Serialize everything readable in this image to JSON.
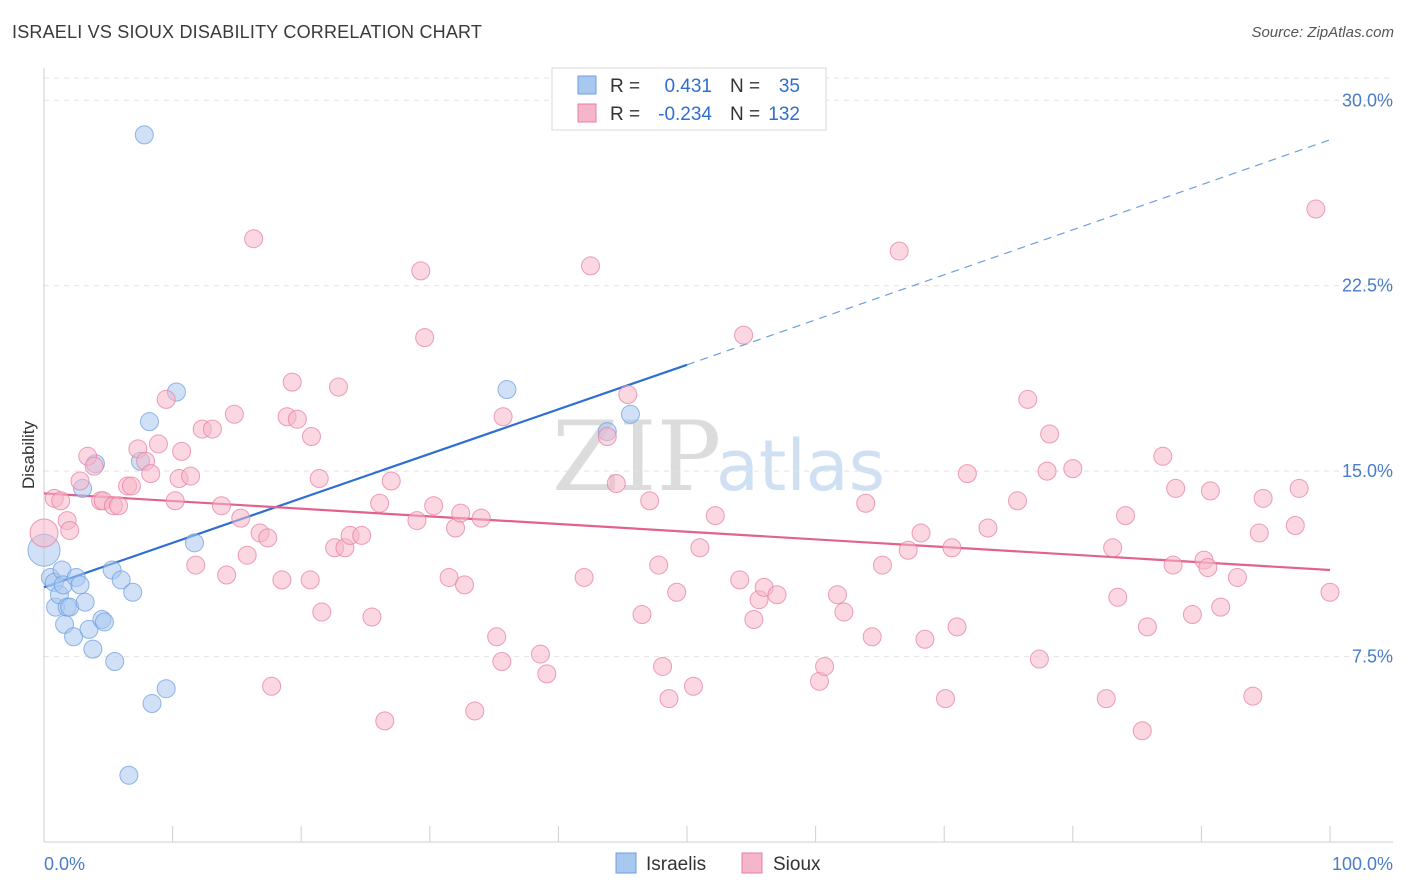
{
  "header": {
    "title": "ISRAELI VS SIOUX DISABILITY CORRELATION CHART",
    "source": "Source: ZipAtlas.com"
  },
  "watermark": {
    "zip": "ZIP",
    "atlas": "atlas"
  },
  "legend": {
    "rows": [
      {
        "r_label": "R =",
        "r_value": "0.431",
        "n_label": "N =",
        "n_value": "35",
        "color": "#a9c8f0"
      },
      {
        "r_label": "R =",
        "r_value": "-0.234",
        "n_label": "N =",
        "n_value": "132",
        "color": "#f5b6c9"
      }
    ]
  },
  "bottom_legend": {
    "israelis": "Israelis",
    "sioux": "Sioux"
  },
  "chart_data": {
    "type": "scatter",
    "title": "ISRAELI VS SIOUX DISABILITY CORRELATION CHART",
    "xlabel": "",
    "ylabel": "Disability",
    "xlim": [
      0,
      100
    ],
    "ylim": [
      0,
      30.9
    ],
    "x_tick_labels": [
      "0.0%",
      "100.0%"
    ],
    "y_ticks": [
      7.5,
      15.0,
      22.5,
      30.0
    ],
    "y_tick_labels": [
      "7.5%",
      "15.0%",
      "22.5%",
      "30.0%"
    ],
    "grid": true,
    "legend_position": "top-center",
    "series": [
      {
        "name": "Israelis",
        "color": "#6d9ee0",
        "fill": "#a9c8f0",
        "trend": {
          "x0": 0,
          "y0": 10.3,
          "x1": 50,
          "y1": 19.3,
          "dashed_to_x": 100,
          "dashed_to_y": 28.4
        },
        "points": [
          [
            0.0,
            11.8,
            16
          ],
          [
            0.5,
            10.7,
            9
          ],
          [
            0.8,
            10.5,
            9
          ],
          [
            0.9,
            9.5,
            9
          ],
          [
            1.2,
            10.0,
            9
          ],
          [
            1.4,
            11.0,
            9
          ],
          [
            1.5,
            10.4,
            9
          ],
          [
            1.6,
            8.8,
            9
          ],
          [
            1.8,
            9.5,
            9
          ],
          [
            2.0,
            9.5,
            9
          ],
          [
            2.3,
            8.3,
            9
          ],
          [
            2.5,
            10.7,
            9
          ],
          [
            2.8,
            10.4,
            9
          ],
          [
            3.0,
            14.3,
            9
          ],
          [
            3.2,
            9.7,
            9
          ],
          [
            3.5,
            8.6,
            9
          ],
          [
            3.8,
            7.8,
            9
          ],
          [
            4.0,
            15.3,
            9
          ],
          [
            4.5,
            9.0,
            9
          ],
          [
            4.7,
            8.9,
            9
          ],
          [
            5.3,
            11.0,
            9
          ],
          [
            5.5,
            7.3,
            9
          ],
          [
            6.0,
            10.6,
            9
          ],
          [
            6.9,
            10.1,
            9
          ],
          [
            7.8,
            28.6,
            9
          ],
          [
            7.5,
            15.4,
            9
          ],
          [
            8.2,
            17.0,
            9
          ],
          [
            8.4,
            5.6,
            9
          ],
          [
            9.5,
            6.2,
            9
          ],
          [
            10.3,
            18.2,
            9
          ],
          [
            11.7,
            12.1,
            9
          ],
          [
            6.6,
            2.7,
            9
          ],
          [
            36.0,
            18.3,
            9
          ],
          [
            43.8,
            16.6,
            9
          ],
          [
            45.6,
            17.3,
            9
          ]
        ]
      },
      {
        "name": "Sioux",
        "color": "#e87fa3",
        "fill": "#f5b6c9",
        "trend": {
          "x0": 0,
          "y0": 14.1,
          "x1": 100,
          "y1": 11.0
        },
        "points": [
          [
            0.0,
            12.5,
            14
          ],
          [
            0.8,
            13.9,
            9
          ],
          [
            1.3,
            13.8,
            9
          ],
          [
            1.8,
            13.0,
            9
          ],
          [
            2.0,
            12.6,
            9
          ],
          [
            2.8,
            14.6,
            9
          ],
          [
            3.4,
            15.6,
            9
          ],
          [
            3.9,
            15.2,
            9
          ],
          [
            4.4,
            13.8,
            9
          ],
          [
            4.6,
            13.8,
            9
          ],
          [
            5.4,
            13.6,
            9
          ],
          [
            5.8,
            13.6,
            9
          ],
          [
            6.5,
            14.4,
            9
          ],
          [
            6.8,
            14.4,
            9
          ],
          [
            7.3,
            15.9,
            9
          ],
          [
            7.9,
            15.4,
            9
          ],
          [
            8.3,
            14.9,
            9
          ],
          [
            8.9,
            16.1,
            9
          ],
          [
            9.5,
            17.9,
            9
          ],
          [
            10.2,
            13.8,
            9
          ],
          [
            10.5,
            14.7,
            9
          ],
          [
            10.7,
            15.8,
            9
          ],
          [
            11.4,
            14.8,
            9
          ],
          [
            11.8,
            11.2,
            9
          ],
          [
            12.3,
            16.7,
            9
          ],
          [
            13.1,
            16.7,
            9
          ],
          [
            13.8,
            13.6,
            9
          ],
          [
            14.2,
            10.8,
            9
          ],
          [
            14.8,
            17.3,
            9
          ],
          [
            15.3,
            13.1,
            9
          ],
          [
            15.8,
            11.6,
            9
          ],
          [
            16.3,
            24.4,
            9
          ],
          [
            16.8,
            12.5,
            9
          ],
          [
            17.4,
            12.3,
            9
          ],
          [
            17.7,
            6.3,
            9
          ],
          [
            18.5,
            10.6,
            9
          ],
          [
            18.9,
            17.2,
            9
          ],
          [
            19.3,
            18.6,
            9
          ],
          [
            19.7,
            17.1,
            9
          ],
          [
            20.7,
            10.6,
            9
          ],
          [
            20.8,
            16.4,
            9
          ],
          [
            21.4,
            14.7,
            9
          ],
          [
            21.6,
            9.3,
            9
          ],
          [
            22.6,
            11.9,
            9
          ],
          [
            22.9,
            18.4,
            9
          ],
          [
            23.4,
            11.9,
            9
          ],
          [
            23.8,
            12.4,
            9
          ],
          [
            24.7,
            12.4,
            9
          ],
          [
            25.5,
            9.1,
            9
          ],
          [
            26.1,
            13.7,
            9
          ],
          [
            26.5,
            4.9,
            9
          ],
          [
            27.0,
            14.6,
            9
          ],
          [
            29.0,
            13.0,
            9
          ],
          [
            29.3,
            23.1,
            9
          ],
          [
            29.6,
            20.4,
            9
          ],
          [
            30.3,
            13.6,
            9
          ],
          [
            31.5,
            10.7,
            9
          ],
          [
            32.0,
            12.7,
            9
          ],
          [
            32.4,
            13.3,
            9
          ],
          [
            32.7,
            10.4,
            9
          ],
          [
            33.5,
            5.3,
            9
          ],
          [
            34.0,
            13.1,
            9
          ],
          [
            35.2,
            8.3,
            9
          ],
          [
            35.6,
            7.3,
            9
          ],
          [
            35.7,
            17.2,
            9
          ],
          [
            38.6,
            7.6,
            9
          ],
          [
            39.1,
            6.8,
            9
          ],
          [
            42.0,
            10.7,
            9
          ],
          [
            42.5,
            23.3,
            9
          ],
          [
            43.8,
            16.4,
            9
          ],
          [
            44.5,
            14.5,
            9
          ],
          [
            45.4,
            18.1,
            9
          ],
          [
            46.5,
            9.2,
            9
          ],
          [
            47.1,
            13.8,
            9
          ],
          [
            47.8,
            11.2,
            9
          ],
          [
            48.1,
            7.1,
            9
          ],
          [
            48.6,
            5.8,
            9
          ],
          [
            49.2,
            10.1,
            9
          ],
          [
            50.5,
            6.3,
            9
          ],
          [
            51.0,
            11.9,
            9
          ],
          [
            52.2,
            13.2,
            9
          ],
          [
            54.1,
            10.6,
            9
          ],
          [
            54.4,
            20.5,
            9
          ],
          [
            55.2,
            9.0,
            9
          ],
          [
            55.6,
            9.8,
            9
          ],
          [
            56.0,
            10.3,
            9
          ],
          [
            57.0,
            10.0,
            9
          ],
          [
            60.3,
            6.5,
            9
          ],
          [
            60.7,
            7.1,
            9
          ],
          [
            61.7,
            10.0,
            9
          ],
          [
            62.2,
            9.3,
            9
          ],
          [
            63.9,
            13.7,
            9
          ],
          [
            64.4,
            8.3,
            9
          ],
          [
            65.2,
            11.2,
            9
          ],
          [
            66.5,
            23.9,
            9
          ],
          [
            67.2,
            11.8,
            9
          ],
          [
            68.2,
            12.5,
            9
          ],
          [
            68.5,
            8.2,
            9
          ],
          [
            70.1,
            5.8,
            9
          ],
          [
            70.6,
            11.9,
            9
          ],
          [
            71.0,
            8.7,
            9
          ],
          [
            71.8,
            14.9,
            9
          ],
          [
            73.4,
            12.7,
            9
          ],
          [
            75.7,
            13.8,
            9
          ],
          [
            76.5,
            17.9,
            9
          ],
          [
            77.4,
            7.4,
            9
          ],
          [
            78.0,
            15.0,
            9
          ],
          [
            78.2,
            16.5,
            9
          ],
          [
            80.0,
            15.1,
            9
          ],
          [
            82.6,
            5.8,
            9
          ],
          [
            83.1,
            11.9,
            9
          ],
          [
            83.5,
            9.9,
            9
          ],
          [
            84.1,
            13.2,
            9
          ],
          [
            85.4,
            4.5,
            9
          ],
          [
            85.8,
            8.7,
            9
          ],
          [
            87.0,
            15.6,
            9
          ],
          [
            87.8,
            11.2,
            9
          ],
          [
            88.0,
            14.3,
            9
          ],
          [
            89.3,
            9.2,
            9
          ],
          [
            90.2,
            11.4,
            9
          ],
          [
            90.5,
            11.1,
            9
          ],
          [
            90.7,
            14.2,
            9
          ],
          [
            91.5,
            9.5,
            9
          ],
          [
            92.8,
            10.7,
            9
          ],
          [
            94.0,
            5.9,
            9
          ],
          [
            94.5,
            12.5,
            9
          ],
          [
            94.8,
            13.9,
            9
          ],
          [
            97.3,
            12.8,
            9
          ],
          [
            97.6,
            14.3,
            9
          ],
          [
            98.9,
            25.6,
            9
          ],
          [
            100.0,
            10.1,
            9
          ]
        ]
      }
    ]
  }
}
